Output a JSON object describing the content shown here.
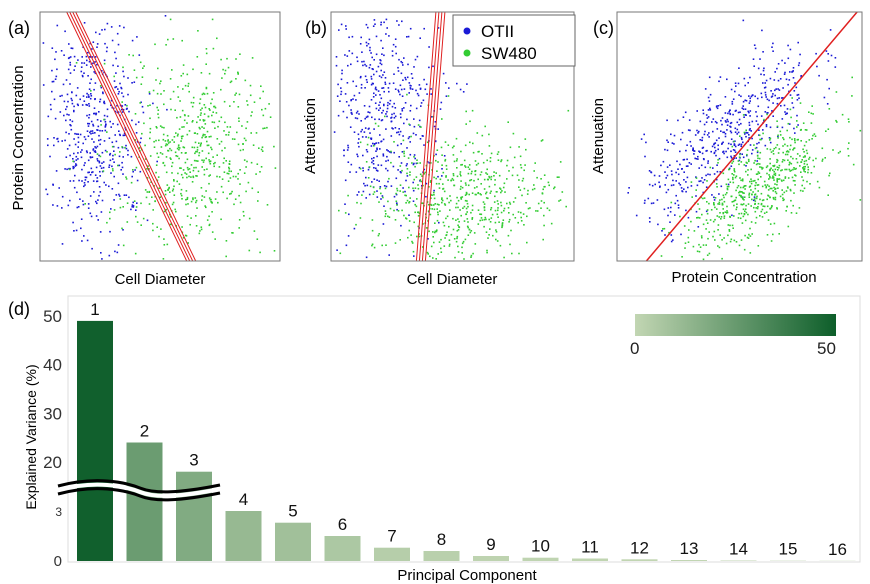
{
  "chart_data": [
    {
      "panel": "(a)",
      "type": "scatter",
      "xlabel": "Cell Diameter",
      "ylabel": "Protein Concentration",
      "series": [
        {
          "name": "OTII",
          "color": "#1a1ad6",
          "center": [
            0.22,
            0.45
          ],
          "spread": [
            0.11,
            0.22
          ],
          "count": 520
        },
        {
          "name": "SW480",
          "color": "#33cc33",
          "center": [
            0.63,
            0.55
          ],
          "spread": [
            0.17,
            0.2
          ],
          "count": 620
        }
      ],
      "boundary_line": {
        "color": "#e02020",
        "x_at_top": 0.13,
        "x_at_bottom": 0.63,
        "copies": 4
      }
    },
    {
      "panel": "(b)",
      "type": "scatter",
      "xlabel": "Cell Diameter",
      "ylabel": "Attenuation",
      "series": [
        {
          "name": "OTII",
          "color": "#1a1ad6",
          "center": [
            0.2,
            0.38
          ],
          "spread": [
            0.12,
            0.23
          ],
          "count": 520
        },
        {
          "name": "SW480",
          "color": "#33cc33",
          "center": [
            0.52,
            0.75
          ],
          "spread": [
            0.2,
            0.14
          ],
          "count": 620
        }
      ],
      "boundary_line": {
        "color": "#e02020",
        "x_at_top": 0.45,
        "x_at_bottom": 0.37,
        "copies": 4
      }
    },
    {
      "panel": "(c)",
      "type": "scatter",
      "xlabel": "Protein Concentration",
      "ylabel": "Attenuation",
      "series": [
        {
          "name": "OTII",
          "color": "#1a1ad6",
          "center": [
            0.45,
            0.48
          ],
          "spread": [
            0.17,
            0.17
          ],
          "count": 520,
          "corr": 0.75
        },
        {
          "name": "SW480",
          "color": "#33cc33",
          "center": [
            0.58,
            0.7
          ],
          "spread": [
            0.16,
            0.14
          ],
          "count": 620,
          "corr": 0.7
        }
      ],
      "boundary_line": {
        "color": "#e02020",
        "x_at_top": 0.98,
        "x_at_bottom": 0.12,
        "copies": 1
      }
    },
    {
      "panel": "(d)",
      "type": "bar",
      "xlabel": "Principal Component",
      "ylabel": "Explained Variance (%)",
      "categories": [
        "1",
        "2",
        "3",
        "4",
        "5",
        "6",
        "7",
        "8",
        "9",
        "10",
        "11",
        "12",
        "13",
        "14",
        "15",
        "16"
      ],
      "values": [
        49.0,
        24.0,
        18.0,
        3.0,
        2.3,
        1.5,
        0.8,
        0.6,
        0.3,
        0.2,
        0.15,
        0.1,
        0.06,
        0.03,
        0.02,
        0.01
      ],
      "upper_axis_ticks": [
        "50",
        "40",
        "30",
        "20"
      ],
      "lower_axis_ticks": [
        "3",
        "0"
      ],
      "axis_break_between": [
        3,
        20
      ],
      "colorbar": {
        "min_label": "0",
        "max_label": "50",
        "min_color": "#c2d6b3",
        "max_color": "#0d5e2a"
      }
    }
  ],
  "legend": {
    "entries": [
      {
        "label": "OTII",
        "color": "#1a1ad6"
      },
      {
        "label": "SW480",
        "color": "#33cc33"
      }
    ]
  }
}
